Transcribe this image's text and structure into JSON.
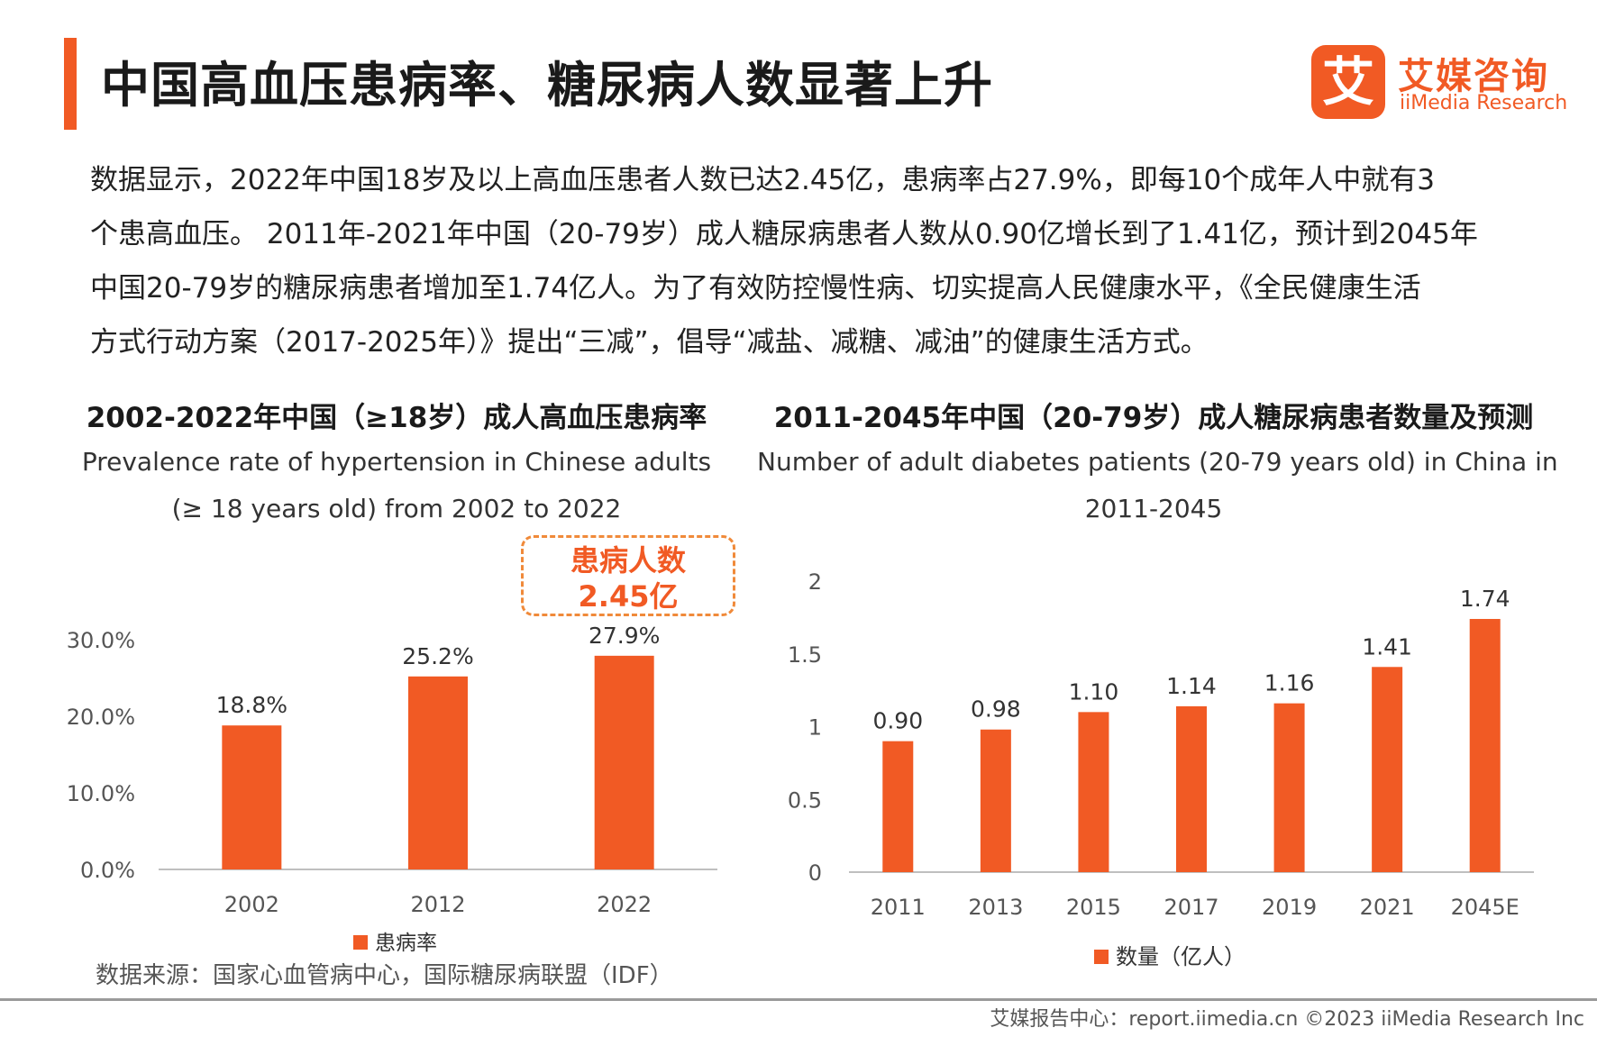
{
  "header": {
    "title": "中国高血压患病率、糖尿病人数显著上升",
    "logo_mark": "艾",
    "logo_cn": "艾媒咨询",
    "logo_en": "iiMedia Research"
  },
  "intro_lines": [
    "数据显示，2022年中国18岁及以上高血压患者人数已达2.45亿，患病率占27.9%，即每10个成年人中就有3",
    "个患高血压。 2011年-2021年中国（20-79岁）成人糖尿病患者人数从0.90亿增长到了1.41亿，预计到2045年",
    "中国20-79岁的糖尿病患者增加至1.74亿人。为了有效防控慢性病、切实提高人民健康水平，《全民健康生活",
    "方式行动方案（2017-2025年）》提出“三减”，倡导“减盐、减糖、减油”的健康生活方式。"
  ],
  "callout": {
    "line1": "患病人数",
    "line2": "2.45亿"
  },
  "source": "数据来源：国家心血管病中心，国际糖尿病联盟（IDF）",
  "footer": "艾媒报告中心：report.iimedia.cn   ©2023  iiMedia Research  Inc",
  "colors": {
    "accent": "#f15a24",
    "bar": "#f15a24",
    "axis": "#bfbfbf",
    "tick": "#555555"
  },
  "chart_data": [
    {
      "type": "bar",
      "title": "2002-2022年中国（≥18岁）成人高血压患病率",
      "subtitle_lines": [
        "Prevalence rate of hypertension in Chinese adults",
        "(≥ 18 years old) from 2002 to 2022"
      ],
      "categories": [
        "2002",
        "2012",
        "2022"
      ],
      "series": [
        {
          "name": "患病率",
          "values": [
            18.8,
            25.2,
            27.9
          ],
          "labels": [
            "18.8%",
            "25.2%",
            "27.9%"
          ]
        }
      ],
      "y_ticks": [
        0,
        10,
        20,
        30
      ],
      "y_tick_labels": [
        "0.0%",
        "10.0%",
        "20.0%",
        "30.0%"
      ],
      "ylim": [
        0,
        30
      ],
      "legend": "bottom"
    },
    {
      "type": "bar",
      "title": "2011-2045年中国（20-79岁）成人糖尿病患者数量及预测",
      "subtitle_lines": [
        "Number of adult diabetes patients (20-79 years old) in China in",
        "2011-2045"
      ],
      "categories": [
        "2011",
        "2013",
        "2015",
        "2017",
        "2019",
        "2021",
        "2045E"
      ],
      "series": [
        {
          "name": "数量（亿人）",
          "values": [
            0.9,
            0.98,
            1.1,
            1.14,
            1.16,
            1.41,
            1.74
          ],
          "labels": [
            "0.90",
            "0.98",
            "1.10",
            "1.14",
            "1.16",
            "1.41",
            "1.74"
          ]
        }
      ],
      "y_ticks": [
        0,
        0.5,
        1,
        1.5,
        2
      ],
      "y_tick_labels": [
        "0",
        "0.5",
        "1",
        "1.5",
        "2"
      ],
      "ylim": [
        0,
        2
      ],
      "legend": "bottom"
    }
  ]
}
